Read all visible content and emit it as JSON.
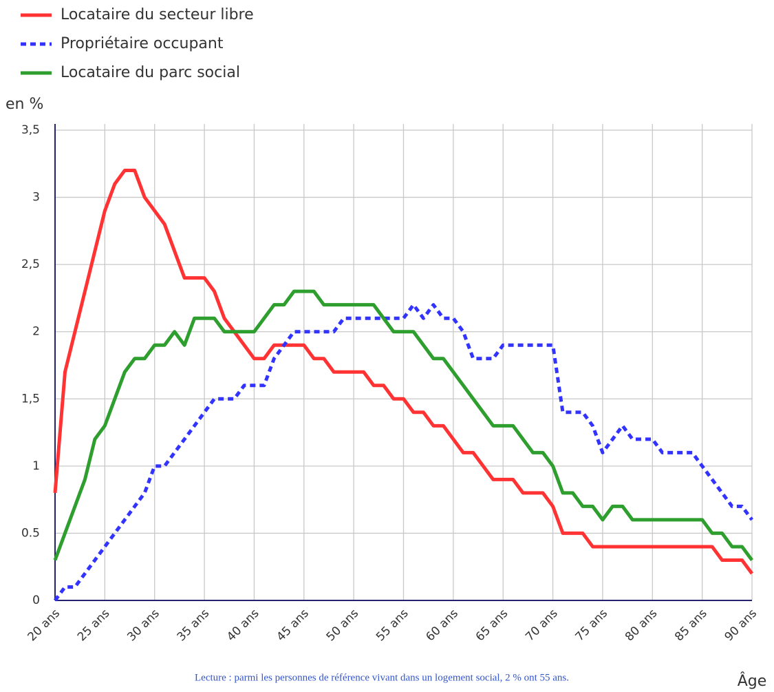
{
  "chart_data": {
    "type": "line",
    "y_label": "en %",
    "x_label": "Âge",
    "note": "Lecture : parmi les personnes de référence vivant dans un logement social, 2 % ont 55 ans.",
    "x": [
      20,
      21,
      22,
      23,
      24,
      25,
      26,
      27,
      28,
      29,
      30,
      31,
      32,
      33,
      34,
      35,
      36,
      37,
      38,
      39,
      40,
      41,
      42,
      43,
      44,
      45,
      46,
      47,
      48,
      49,
      50,
      51,
      52,
      53,
      54,
      55,
      56,
      57,
      58,
      59,
      60,
      61,
      62,
      63,
      64,
      65,
      66,
      67,
      68,
      69,
      70,
      71,
      72,
      73,
      74,
      75,
      76,
      77,
      78,
      79,
      80,
      81,
      82,
      83,
      84,
      85,
      86,
      87,
      88,
      89,
      90
    ],
    "series": [
      {
        "name": "Locataire du secteur libre",
        "color": "#ff3333",
        "dash": "solid",
        "values": [
          0.8,
          1.7,
          2.0,
          2.3,
          2.6,
          2.9,
          3.1,
          3.2,
          3.2,
          3.0,
          2.9,
          2.8,
          2.6,
          2.4,
          2.4,
          2.4,
          2.3,
          2.1,
          2.0,
          1.9,
          1.8,
          1.8,
          1.9,
          1.9,
          1.9,
          1.9,
          1.8,
          1.8,
          1.7,
          1.7,
          1.7,
          1.7,
          1.6,
          1.6,
          1.5,
          1.5,
          1.4,
          1.4,
          1.3,
          1.3,
          1.2,
          1.1,
          1.1,
          1.0,
          0.9,
          0.9,
          0.9,
          0.8,
          0.8,
          0.8,
          0.7,
          0.5,
          0.5,
          0.5,
          0.4,
          0.4,
          0.4,
          0.4,
          0.4,
          0.4,
          0.4,
          0.4,
          0.4,
          0.4,
          0.4,
          0.4,
          0.4,
          0.3,
          0.3,
          0.3,
          0.2
        ]
      },
      {
        "name": "Propriétaire occupant",
        "color": "#3333ff",
        "dash": "dotted",
        "values": [
          0,
          0.1,
          0.1,
          0.2,
          0.3,
          0.4,
          0.5,
          0.6,
          0.7,
          0.8,
          1.0,
          1.0,
          1.1,
          1.2,
          1.3,
          1.4,
          1.5,
          1.5,
          1.5,
          1.6,
          1.6,
          1.6,
          1.8,
          1.9,
          2.0,
          2.0,
          2.0,
          2.0,
          2.0,
          2.1,
          2.1,
          2.1,
          2.1,
          2.1,
          2.1,
          2.1,
          2.2,
          2.1,
          2.2,
          2.1,
          2.1,
          2.0,
          1.8,
          1.8,
          1.8,
          1.9,
          1.9,
          1.9,
          1.9,
          1.9,
          1.9,
          1.4,
          1.4,
          1.4,
          1.3,
          1.1,
          1.2,
          1.3,
          1.2,
          1.2,
          1.2,
          1.1,
          1.1,
          1.1,
          1.1,
          1.0,
          0.9,
          0.8,
          0.7,
          0.7,
          0.6
        ]
      },
      {
        "name": "Locataire du parc social",
        "color": "#2e9e2e",
        "dash": "solid",
        "values": [
          0.3,
          0.5,
          0.7,
          0.9,
          1.2,
          1.3,
          1.5,
          1.7,
          1.8,
          1.8,
          1.9,
          1.9,
          2.0,
          1.9,
          2.1,
          2.1,
          2.1,
          2.0,
          2.0,
          2.0,
          2.0,
          2.1,
          2.2,
          2.2,
          2.3,
          2.3,
          2.3,
          2.2,
          2.2,
          2.2,
          2.2,
          2.2,
          2.2,
          2.1,
          2.0,
          2.0,
          2.0,
          1.9,
          1.8,
          1.8,
          1.7,
          1.6,
          1.5,
          1.4,
          1.3,
          1.3,
          1.3,
          1.2,
          1.1,
          1.1,
          1.0,
          0.8,
          0.8,
          0.7,
          0.7,
          0.6,
          0.7,
          0.7,
          0.6,
          0.6,
          0.6,
          0.6,
          0.6,
          0.6,
          0.6,
          0.6,
          0.5,
          0.5,
          0.4,
          0.4,
          0.3
        ]
      }
    ],
    "xlim": [
      20,
      90
    ],
    "xticks": [
      {
        "value": 20,
        "label": "20 ans"
      },
      {
        "value": 25,
        "label": "25 ans"
      },
      {
        "value": 30,
        "label": "30 ans"
      },
      {
        "value": 35,
        "label": "35 ans"
      },
      {
        "value": 40,
        "label": "40 ans"
      },
      {
        "value": 45,
        "label": "45 ans"
      },
      {
        "value": 50,
        "label": "50 ans"
      },
      {
        "value": 55,
        "label": "55 ans"
      },
      {
        "value": 60,
        "label": "60 ans"
      },
      {
        "value": 65,
        "label": "65 ans"
      },
      {
        "value": 70,
        "label": "70 ans"
      },
      {
        "value": 75,
        "label": "75 ans"
      },
      {
        "value": 80,
        "label": "80 ans"
      },
      {
        "value": 85,
        "label": "85 ans"
      },
      {
        "value": 90,
        "label": "90 ans"
      }
    ],
    "ylim": [
      0,
      3.5
    ],
    "yticks": [
      0,
      0.5,
      1,
      {
        "value": 1.5,
        "label": "1,5"
      },
      2,
      {
        "value": 2.5,
        "label": "2,5"
      },
      3,
      {
        "value": 3.5,
        "label": "3,5"
      }
    ],
    "grid": true,
    "legend": "top-left"
  }
}
